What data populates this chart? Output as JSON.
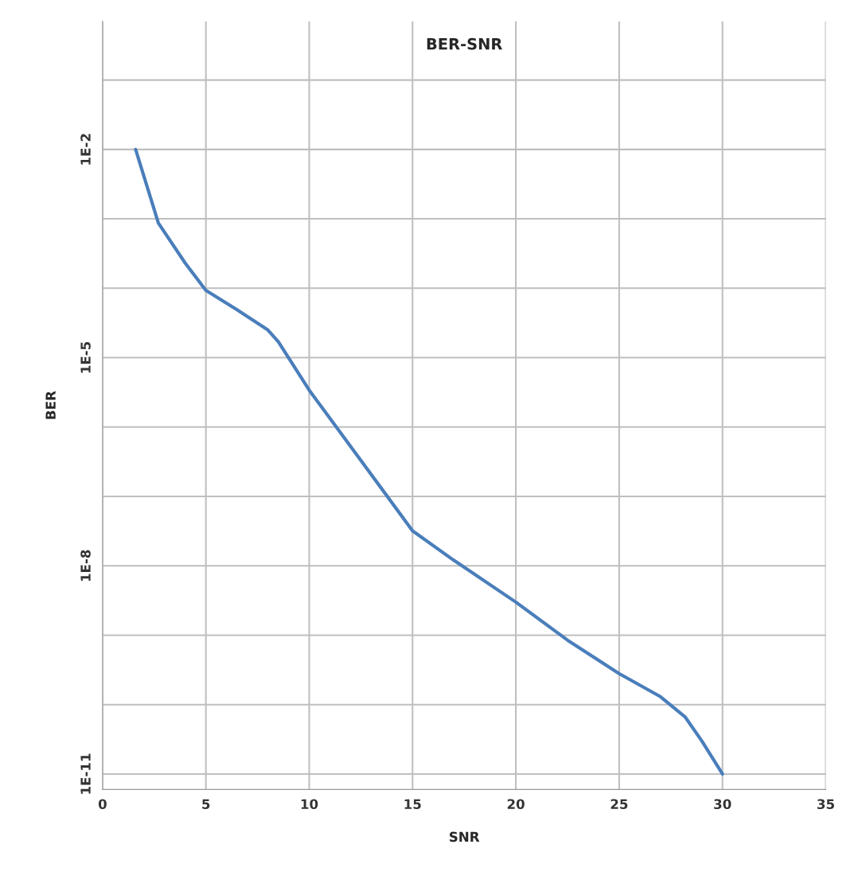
{
  "chart_data": {
    "type": "line",
    "title": "BER-SNR",
    "xlabel": "SNR",
    "ylabel": "BER",
    "log": "y",
    "grid": true,
    "marker": "none",
    "line_style": "solid",
    "x": [
      1.6,
      2.7,
      4,
      5,
      6.5,
      8,
      8.5,
      10,
      12.5,
      15,
      17,
      20,
      22.5,
      25,
      27,
      28.2,
      29,
      30
    ],
    "series": [
      {
        "color": "#4a7ebb",
        "values": [
          0.01,
          0.00087,
          0.00023,
          9.3e-05,
          4.9e-05,
          2.5e-05,
          1.7e-05,
          3.4e-06,
          3.3e-07,
          3.2e-08,
          1.2e-08,
          3e-09,
          8.5e-10,
          2.8e-10,
          1.3e-10,
          6.6e-11,
          3e-11,
          1e-11
        ]
      }
    ],
    "xlim": [
      0,
      35
    ],
    "xticks": [
      0,
      5,
      10,
      15,
      20,
      25,
      30,
      35
    ],
    "ylim": [
      6e-12,
      0.7
    ],
    "yticks": [
      {
        "value": 0.1,
        "label": null
      },
      {
        "value": 0.01,
        "label": "1E-2"
      },
      {
        "value": 0.001,
        "label": null
      },
      {
        "value": 0.0001,
        "label": null
      },
      {
        "value": 1e-05,
        "label": "1E-5"
      },
      {
        "value": 1e-06,
        "label": null
      },
      {
        "value": 1e-07,
        "label": null
      },
      {
        "value": 1e-08,
        "label": "1E-8"
      },
      {
        "value": 1e-09,
        "label": null
      },
      {
        "value": 1e-10,
        "label": null
      },
      {
        "value": 1e-11,
        "label": "1E-11"
      }
    ]
  }
}
